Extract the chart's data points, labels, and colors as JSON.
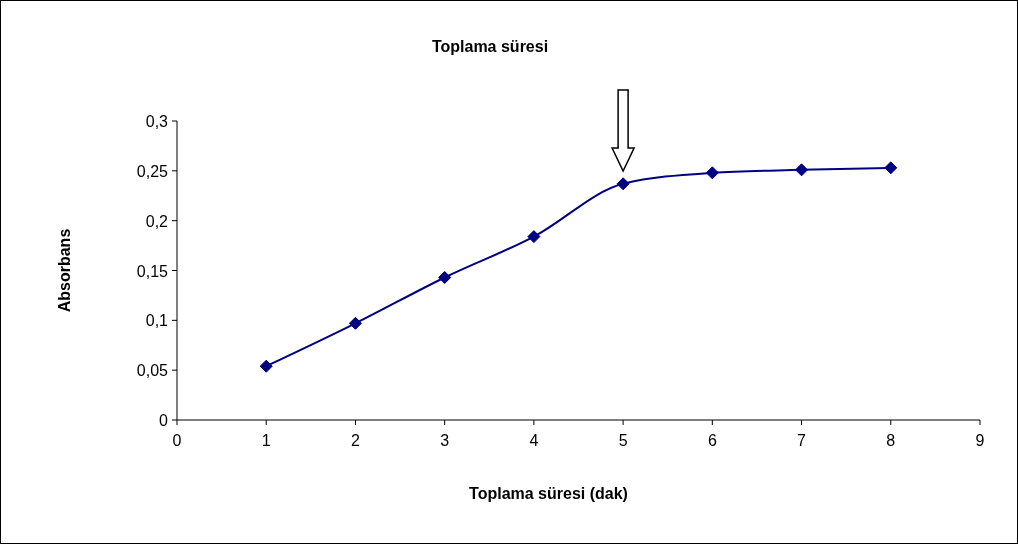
{
  "chart_data": {
    "type": "line",
    "title": "Toplama süresi",
    "xlabel": "Toplama süresi (dak)",
    "ylabel": "Absorbans",
    "x": [
      1,
      2,
      3,
      4,
      5,
      6,
      7,
      8
    ],
    "series": [
      {
        "color": "#000080",
        "values": [
          0.054,
          0.097,
          0.143,
          0.184,
          0.237,
          0.248,
          0.251,
          0.253
        ]
      }
    ],
    "xlim": [
      0,
      9
    ],
    "xticks": [
      0,
      1,
      2,
      3,
      4,
      5,
      6,
      7,
      8,
      9
    ],
    "ylim": [
      0,
      0.3
    ],
    "yticks": [
      {
        "value": 0,
        "label": "0"
      },
      {
        "value": 0.05,
        "label": "0,05"
      },
      {
        "value": 0.1,
        "label": "0,1"
      },
      {
        "value": 0.15,
        "label": "0,15"
      },
      {
        "value": 0.2,
        "label": "0,2"
      },
      {
        "value": 0.25,
        "label": "0,25"
      },
      {
        "value": 0.3,
        "label": "0,3"
      }
    ],
    "grid": false,
    "marker": "diamond",
    "line_style": "solid"
  }
}
